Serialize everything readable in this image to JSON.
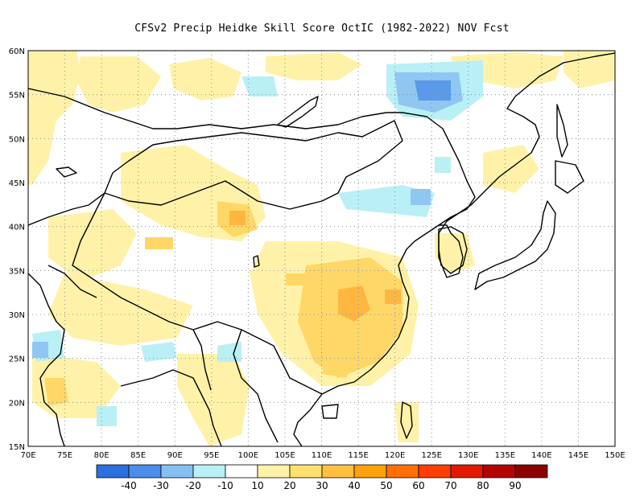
{
  "title": "CFSv2 Precip Heidke Skill Score OctIC (1982-2022) NOV Fcst",
  "map": {
    "lon_labels": [
      "70E",
      "75E",
      "80E",
      "85E",
      "90E",
      "95E",
      "100E",
      "105E",
      "110E",
      "115E",
      "120E",
      "125E",
      "130E",
      "135E",
      "140E",
      "145E",
      "150E"
    ],
    "lat_labels": [
      "60N",
      "55N",
      "50N",
      "45N",
      "40N",
      "35N",
      "30N",
      "25N",
      "20N",
      "15N"
    ],
    "grid": "dotted",
    "colors": {
      "land_yellow": "#fff2a8",
      "light_orange": "#ffd766",
      "orange": "#ffb640",
      "light_blue": "#b9f0f6",
      "blue": "#8fc6f2",
      "dark_blue": "#5a9ae8",
      "coast": "#000000"
    }
  },
  "colorbar": {
    "labels": [
      "-40",
      "-30",
      "-20",
      "-10",
      "10",
      "20",
      "30",
      "40",
      "50",
      "60",
      "70",
      "80",
      "90"
    ],
    "colors": [
      "#2b6fe0",
      "#4a8eea",
      "#86c0f2",
      "#b9f0f6",
      "#ffffff",
      "#fff2a8",
      "#ffe06e",
      "#ffc040",
      "#ffa10c",
      "#ff6f05",
      "#ff3d04",
      "#e21a02",
      "#b40303",
      "#8c0000"
    ]
  }
}
